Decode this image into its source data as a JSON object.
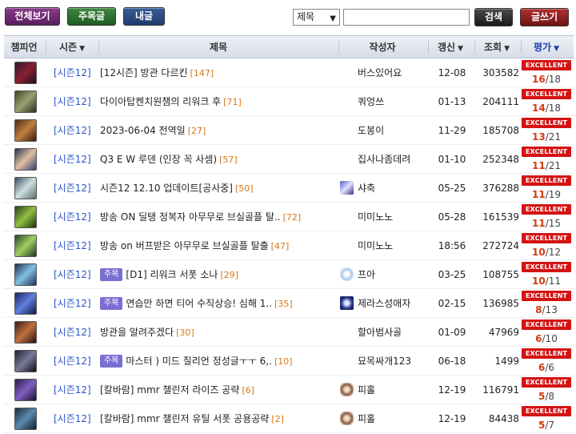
{
  "toolbar": {
    "all_label": "전체보기",
    "fav_label": "주목글",
    "mine_label": "내글",
    "search_select_value": "제목",
    "search_input_value": "",
    "search_label": "검색",
    "write_label": "글쓰기"
  },
  "columns": {
    "champion": "챔피언",
    "season": "시즌",
    "title": "제목",
    "author": "작성자",
    "updated": "갱신",
    "views": "조회",
    "rating": "평가"
  },
  "badge_text": "EXCELLENT",
  "colors": {
    "season_link": "#2a55c8",
    "comment_count": "#d7761a",
    "badge_bg": "#d41313",
    "score_num": "#d43a0a",
    "tag_bg": "#7a6fd0",
    "rating_header": "#1e3fae"
  },
  "rows": [
    {
      "season": "[시즌12]",
      "tag": "",
      "title": "[12시즌] 방관 다르킨",
      "comments": "[147]",
      "author": "버스있어요",
      "author_icon": "",
      "updated": "12-08",
      "views": "303582",
      "score": "16",
      "total": "/18"
    },
    {
      "season": "[시즌12]",
      "tag": "",
      "title": "다이아탑켄치원챔의 리워크 후",
      "comments": "[71]",
      "author": "쿼엉쓰",
      "author_icon": "",
      "updated": "01-13",
      "views": "204111",
      "score": "14",
      "total": "/18"
    },
    {
      "season": "[시즌12]",
      "tag": "",
      "title": "2023-06-04 전역일",
      "comments": "[27]",
      "author": "도봉이",
      "author_icon": "",
      "updated": "11-29",
      "views": "185708",
      "score": "13",
      "total": "/21"
    },
    {
      "season": "[시즌12]",
      "tag": "",
      "title": "Q3 E W 루덴 (인장 꼭 사셈)",
      "comments": "[57]",
      "author": "집사나좀데려",
      "author_icon": "",
      "updated": "01-10",
      "views": "252348",
      "score": "11",
      "total": "/21"
    },
    {
      "season": "[시즌12]",
      "tag": "",
      "title": "시즌12 12.10 업데이트[공사중]",
      "comments": "[50]",
      "author": "샤축",
      "author_icon": "ai-a",
      "updated": "05-25",
      "views": "376288",
      "score": "11",
      "total": "/19"
    },
    {
      "season": "[시즌12]",
      "tag": "",
      "title": "방송 ON 딜탱 정복자 아무무로 브실골플 탈..",
      "comments": "[72]",
      "author": "미미노노",
      "author_icon": "",
      "updated": "05-28",
      "views": "161539",
      "score": "11",
      "total": "/15"
    },
    {
      "season": "[시즌12]",
      "tag": "",
      "title": "방송 on 버프받은 아무무로 브실골플 탈출",
      "comments": "[47]",
      "author": "미미노노",
      "author_icon": "",
      "updated": "18:56",
      "views": "272724",
      "score": "10",
      "total": "/12"
    },
    {
      "season": "[시즌12]",
      "tag": "주목",
      "title": "[D1] 리워크 서폿 소나",
      "comments": "[29]",
      "author": "프아",
      "author_icon": "ai-b",
      "updated": "03-25",
      "views": "108755",
      "score": "10",
      "total": "/11"
    },
    {
      "season": "[시즌12]",
      "tag": "주목",
      "title": "연습만 하면 티어 수직상승! 심해 1..",
      "comments": "[35]",
      "author": "제라스성애자",
      "author_icon": "ai-c",
      "updated": "02-15",
      "views": "136985",
      "score": "8",
      "total": "/13"
    },
    {
      "season": "[시즌12]",
      "tag": "",
      "title": "방관을 알려주겠다",
      "comments": "[30]",
      "author": "할아범사골",
      "author_icon": "",
      "updated": "01-09",
      "views": "47969",
      "score": "6",
      "total": "/10"
    },
    {
      "season": "[시즌12]",
      "tag": "주목",
      "title": "마스터 ) 미드 질리언 정성글ㅜㅜ 6,.",
      "comments": "[10]",
      "author": "묘목싸개123",
      "author_icon": "",
      "updated": "06-18",
      "views": "1499",
      "score": "6",
      "total": "/6"
    },
    {
      "season": "[시즌12]",
      "tag": "",
      "title": "[칼바람] mmr 챌린저 라이즈 공략",
      "comments": "[6]",
      "author": "피홀",
      "author_icon": "ai-d",
      "updated": "12-19",
      "views": "116791",
      "score": "5",
      "total": "/8"
    },
    {
      "season": "[시즌12]",
      "tag": "",
      "title": "[칼바람] mmr 챌린저 유틸 서폿 공용공략",
      "comments": "[2]",
      "author": "피홀",
      "author_icon": "ai-d",
      "updated": "12-19",
      "views": "84438",
      "score": "5",
      "total": "/7"
    }
  ]
}
